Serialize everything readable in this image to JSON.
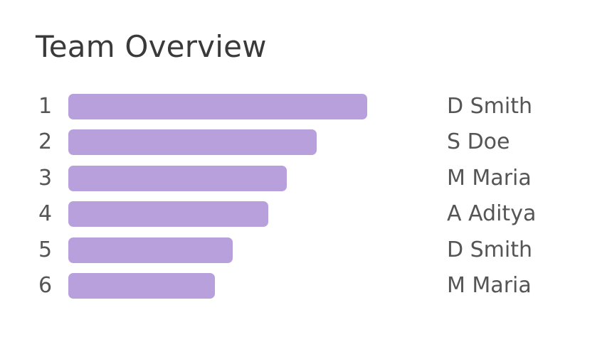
{
  "title": "Team Overview",
  "colors": {
    "bar": "#b8a0dc"
  },
  "scale_max": 100,
  "rows": [
    {
      "rank": "1",
      "value": 100,
      "name": "D Smith"
    },
    {
      "rank": "2",
      "value": 83,
      "name": "S Doe"
    },
    {
      "rank": "3",
      "value": 73,
      "name": "M Maria"
    },
    {
      "rank": "4",
      "value": 67,
      "name": "A Aditya"
    },
    {
      "rank": "5",
      "value": 55,
      "name": "D Smith"
    },
    {
      "rank": "6",
      "value": 49,
      "name": "M Maria"
    }
  ]
}
